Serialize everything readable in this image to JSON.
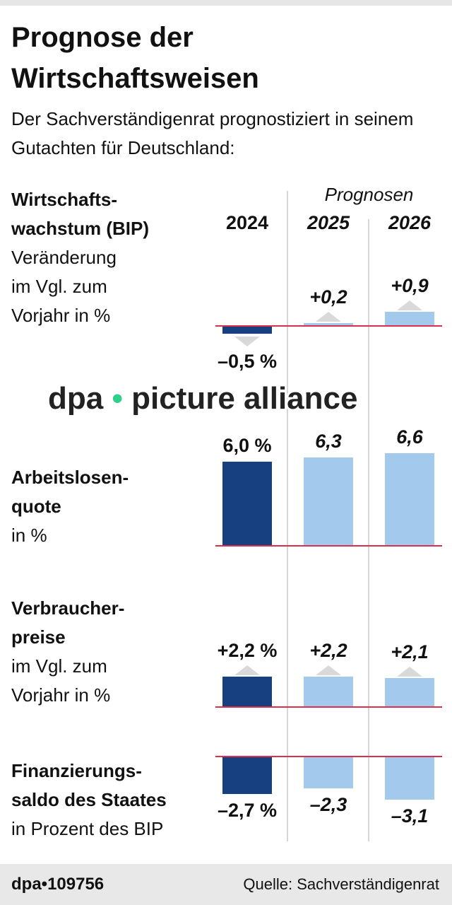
{
  "title": "Prognose der Wirtschaftsweisen",
  "subtitle": "Der Sachverständigenrat prognostiziert in seinem Gutachten für Deutschland:",
  "prognosen_label": "Prognosen",
  "colors": {
    "actual": "#16407f",
    "forecast": "#a3c9ec",
    "baseline": "#d9304f",
    "triangle": "#d9d9d9"
  },
  "chart_data": {
    "type": "bar",
    "categories": [
      "2024",
      "2025",
      "2026"
    ],
    "panels": [
      {
        "label_bold": "Wirtschafts-\nwachstum (BIP)",
        "label": "Veränderung\nim Vgl. zum\nVorjahr in %",
        "values": [
          -0.5,
          0.2,
          0.9
        ],
        "data_labels": [
          "–0,5 %",
          "+0,2",
          "+0,9"
        ],
        "arrows": true
      },
      {
        "label_bold": "Arbeitslosen-\nquote",
        "label": "in %",
        "values": [
          6.0,
          6.3,
          6.6
        ],
        "data_labels": [
          "6,0 %",
          "6,3",
          "6,6"
        ],
        "arrows": false
      },
      {
        "label_bold": "Verbraucher-\npreise",
        "label": "im Vgl. zum\nVorjahr in %",
        "values": [
          2.2,
          2.2,
          2.1
        ],
        "data_labels": [
          "+2,2 %",
          "+2,2",
          "+2,1"
        ],
        "arrows": true
      },
      {
        "label_bold": "Finanzierungs-\nsaldo des Staates",
        "label": "in Prozent des BIP",
        "values": [
          -2.7,
          -2.3,
          -3.1
        ],
        "data_labels": [
          "–2,7 %",
          "–2,3",
          "–3,1"
        ],
        "arrows": false
      }
    ]
  },
  "watermark": {
    "left": "dpa",
    "dot": "•",
    "right": "picture alliance"
  },
  "footer": {
    "id": "dpa•109756",
    "source": "Quelle: Sachverständigenrat"
  }
}
